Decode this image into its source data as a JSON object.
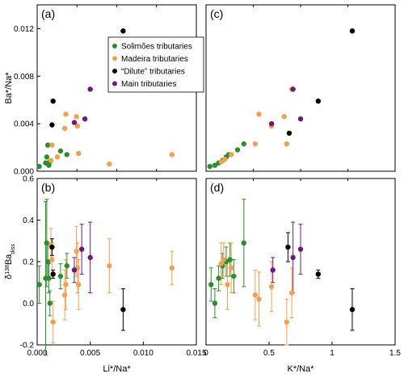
{
  "colors": {
    "Solimoes": "#2e8b2e",
    "Madeira": "#f0a050",
    "Dilute": "#000000",
    "Main": "#6a1b7a"
  },
  "chart_data": [
    {
      "panel": "(a)",
      "type": "scatter",
      "xlim": [
        0,
        0.015
      ],
      "ylim": [
        0,
        0.014
      ],
      "xticks": [],
      "yticks": [
        "0.000",
        "0.004",
        "0.008",
        "0.012"
      ],
      "ytick_values": [
        0,
        0.004,
        0.008,
        0.012
      ],
      "xlabel": "",
      "ylabel": "Ba*/Na*",
      "legend": {
        "placement": "top-right",
        "entries": [
          {
            "group": "Solimoes",
            "label": "Solimões tributaries"
          },
          {
            "group": "Madeira",
            "label": "Madeira tributaries"
          },
          {
            "group": "Dilute",
            "label": "“Dilute” tributaries"
          },
          {
            "group": "Main",
            "label": "Main tributaries"
          }
        ]
      },
      "points": [
        {
          "group": "Solimoes",
          "x": 0.0002,
          "y": 0.0004
        },
        {
          "group": "Solimoes",
          "x": 0.0008,
          "y": 0.0007
        },
        {
          "group": "Solimoes",
          "x": 0.0009,
          "y": 0.0012
        },
        {
          "group": "Solimoes",
          "x": 0.001,
          "y": 0.0022
        },
        {
          "group": "Solimoes",
          "x": 0.0011,
          "y": 0.0005
        },
        {
          "group": "Solimoes",
          "x": 0.0012,
          "y": 0.0008
        },
        {
          "group": "Solimoes",
          "x": 0.0022,
          "y": 0.0017
        },
        {
          "group": "Solimoes",
          "x": 0.0028,
          "y": 0.0014
        },
        {
          "group": "Madeira",
          "x": 0.0013,
          "y": 0.0009
        },
        {
          "group": "Madeira",
          "x": 0.0014,
          "y": 0.0022
        },
        {
          "group": "Madeira",
          "x": 0.0019,
          "y": 0.0012
        },
        {
          "group": "Madeira",
          "x": 0.0026,
          "y": 0.0036
        },
        {
          "group": "Madeira",
          "x": 0.0027,
          "y": 0.0048
        },
        {
          "group": "Madeira",
          "x": 0.0037,
          "y": 0.0046
        },
        {
          "group": "Madeira",
          "x": 0.0038,
          "y": 0.0038
        },
        {
          "group": "Madeira",
          "x": 0.0039,
          "y": 0.0015
        },
        {
          "group": "Madeira",
          "x": 0.0068,
          "y": 0.0006
        },
        {
          "group": "Madeira",
          "x": 0.0127,
          "y": 0.0014
        },
        {
          "group": "Dilute",
          "x": 0.0014,
          "y": 0.0039
        },
        {
          "group": "Dilute",
          "x": 0.0015,
          "y": 0.0059
        },
        {
          "group": "Dilute",
          "x": 0.0081,
          "y": 0.0118
        },
        {
          "group": "Main",
          "x": 0.0035,
          "y": 0.0041
        },
        {
          "group": "Main",
          "x": 0.0045,
          "y": 0.0044
        },
        {
          "group": "Main",
          "x": 0.005,
          "y": 0.0069
        }
      ]
    },
    {
      "panel": "(c)",
      "type": "scatter",
      "xlim": [
        0,
        1.5
      ],
      "ylim": [
        0,
        0.014
      ],
      "xticks": [],
      "yticks": [],
      "xlabel": "",
      "ylabel": "",
      "points": [
        {
          "group": "Solimoes",
          "x": 0.03,
          "y": 0.0004
        },
        {
          "group": "Solimoes",
          "x": 0.07,
          "y": 0.0005
        },
        {
          "group": "Solimoes",
          "x": 0.1,
          "y": 0.0007
        },
        {
          "group": "Solimoes",
          "x": 0.13,
          "y": 0.0009
        },
        {
          "group": "Solimoes",
          "x": 0.16,
          "y": 0.0012
        },
        {
          "group": "Solimoes",
          "x": 0.18,
          "y": 0.0014
        },
        {
          "group": "Solimoes",
          "x": 0.25,
          "y": 0.0018
        },
        {
          "group": "Solimoes",
          "x": 0.3,
          "y": 0.0023
        },
        {
          "group": "Madeira",
          "x": 0.12,
          "y": 0.0008
        },
        {
          "group": "Madeira",
          "x": 0.15,
          "y": 0.001
        },
        {
          "group": "Madeira",
          "x": 0.2,
          "y": 0.0014
        },
        {
          "group": "Madeira",
          "x": 0.39,
          "y": 0.0023
        },
        {
          "group": "Madeira",
          "x": 0.42,
          "y": 0.0048
        },
        {
          "group": "Madeira",
          "x": 0.52,
          "y": 0.0038
        },
        {
          "group": "Madeira",
          "x": 0.62,
          "y": 0.0046
        },
        {
          "group": "Madeira",
          "x": 0.64,
          "y": 0.0023
        },
        {
          "group": "Madeira",
          "x": 0.68,
          "y": 0.0069
        },
        {
          "group": "Dilute",
          "x": 0.66,
          "y": 0.0032
        },
        {
          "group": "Dilute",
          "x": 0.89,
          "y": 0.0059
        },
        {
          "group": "Dilute",
          "x": 1.16,
          "y": 0.0118
        },
        {
          "group": "Main",
          "x": 0.52,
          "y": 0.004
        },
        {
          "group": "Main",
          "x": 0.69,
          "y": 0.0069
        },
        {
          "group": "Main",
          "x": 0.75,
          "y": 0.0044
        }
      ]
    },
    {
      "panel": "(b)",
      "type": "scatter",
      "xlim": [
        0,
        0.015
      ],
      "ylim": [
        -0.2,
        0.6
      ],
      "xticks": [
        "0.000",
        "0.005",
        "0.010",
        "0.015"
      ],
      "xtick_values": [
        0,
        0.005,
        0.01,
        0.015
      ],
      "yticks": [
        "-0.2",
        "0.0",
        "0.2",
        "0.4",
        "0.6"
      ],
      "ytick_values": [
        -0.2,
        0,
        0.2,
        0.4,
        0.6
      ],
      "xlabel": "Li*/Na*",
      "ylabel": "δ138Badiss",
      "points": [
        {
          "group": "Solimoes",
          "x": 0.0002,
          "y": 0.09,
          "err": 0.09
        },
        {
          "group": "Solimoes",
          "x": 0.0008,
          "y": 0.12,
          "err": 0.37
        },
        {
          "group": "Solimoes",
          "x": 0.0009,
          "y": 0.29,
          "err": 0.21
        },
        {
          "group": "Solimoes",
          "x": 0.001,
          "y": 0.2,
          "err": 0.08
        },
        {
          "group": "Solimoes",
          "x": 0.0011,
          "y": 0.12,
          "err": 0.07
        },
        {
          "group": "Solimoes",
          "x": 0.0012,
          "y": 0.0,
          "err": 0.06
        },
        {
          "group": "Solimoes",
          "x": 0.0022,
          "y": 0.13,
          "err": 0.06
        },
        {
          "group": "Solimoes",
          "x": 0.0028,
          "y": 0.18,
          "err": 0.06
        },
        {
          "group": "Madeira",
          "x": 0.0013,
          "y": 0.28,
          "err": 0.08
        },
        {
          "group": "Madeira",
          "x": 0.0014,
          "y": 0.21,
          "err": 0.08
        },
        {
          "group": "Madeira",
          "x": 0.0015,
          "y": -0.09,
          "err": 0.1
        },
        {
          "group": "Madeira",
          "x": 0.0026,
          "y": 0.04,
          "err": 0.12
        },
        {
          "group": "Madeira",
          "x": 0.0027,
          "y": 0.09,
          "err": 0.12
        },
        {
          "group": "Madeira",
          "x": 0.0037,
          "y": 0.25,
          "err": 0.12
        },
        {
          "group": "Madeira",
          "x": 0.0038,
          "y": 0.17,
          "err": 0.12
        },
        {
          "group": "Madeira",
          "x": 0.0039,
          "y": 0.09,
          "err": 0.12
        },
        {
          "group": "Madeira",
          "x": 0.0068,
          "y": 0.18,
          "err": 0.13
        },
        {
          "group": "Madeira",
          "x": 0.0127,
          "y": 0.17,
          "err": 0.08
        },
        {
          "group": "Dilute",
          "x": 0.0014,
          "y": 0.27,
          "err": 0.04
        },
        {
          "group": "Dilute",
          "x": 0.0015,
          "y": 0.14,
          "err": 0.02
        },
        {
          "group": "Dilute",
          "x": 0.0081,
          "y": -0.03,
          "err": 0.1
        },
        {
          "group": "Main",
          "x": 0.0035,
          "y": 0.16,
          "err": 0.06
        },
        {
          "group": "Main",
          "x": 0.0042,
          "y": 0.26,
          "err": 0.12
        },
        {
          "group": "Main",
          "x": 0.005,
          "y": 0.22,
          "err": 0.17
        }
      ]
    },
    {
      "panel": "(d)",
      "type": "scatter",
      "xlim": [
        0,
        1.5
      ],
      "ylim": [
        -0.2,
        0.6
      ],
      "xticks": [
        "0",
        "0.5",
        "1",
        "1.5"
      ],
      "xtick_values": [
        0,
        0.5,
        1,
        1.5
      ],
      "yticks": [],
      "xlabel": "K*/Na*",
      "ylabel": "",
      "points": [
        {
          "group": "Solimoes",
          "x": 0.04,
          "y": 0.09,
          "err": 0.08
        },
        {
          "group": "Solimoes",
          "x": 0.07,
          "y": 0.0,
          "err": 0.07
        },
        {
          "group": "Solimoes",
          "x": 0.1,
          "y": 0.12,
          "err": 0.06
        },
        {
          "group": "Solimoes",
          "x": 0.13,
          "y": 0.18,
          "err": 0.06
        },
        {
          "group": "Solimoes",
          "x": 0.16,
          "y": 0.2,
          "err": 0.07
        },
        {
          "group": "Solimoes",
          "x": 0.19,
          "y": 0.21,
          "err": 0.08
        },
        {
          "group": "Solimoes",
          "x": 0.22,
          "y": 0.13,
          "err": 0.08
        },
        {
          "group": "Solimoes",
          "x": 0.3,
          "y": 0.29,
          "err": 0.21
        },
        {
          "group": "Madeira",
          "x": 0.12,
          "y": 0.19,
          "err": 0.1
        },
        {
          "group": "Madeira",
          "x": 0.14,
          "y": 0.21,
          "err": 0.08
        },
        {
          "group": "Madeira",
          "x": 0.17,
          "y": 0.09,
          "err": 0.12
        },
        {
          "group": "Madeira",
          "x": 0.2,
          "y": 0.17,
          "err": 0.12
        },
        {
          "group": "Madeira",
          "x": 0.39,
          "y": 0.04,
          "err": 0.12
        },
        {
          "group": "Madeira",
          "x": 0.42,
          "y": 0.02,
          "err": 0.13
        },
        {
          "group": "Madeira",
          "x": 0.52,
          "y": 0.08,
          "err": 0.12
        },
        {
          "group": "Madeira",
          "x": 0.64,
          "y": -0.09,
          "err": 0.11
        },
        {
          "group": "Madeira",
          "x": 0.68,
          "y": 0.05,
          "err": 0.12
        },
        {
          "group": "Dilute",
          "x": 0.65,
          "y": 0.27,
          "err": 0.07
        },
        {
          "group": "Dilute",
          "x": 0.89,
          "y": 0.14,
          "err": 0.02
        },
        {
          "group": "Dilute",
          "x": 1.16,
          "y": -0.03,
          "err": 0.1
        },
        {
          "group": "Main",
          "x": 0.53,
          "y": 0.16,
          "err": 0.06
        },
        {
          "group": "Main",
          "x": 0.69,
          "y": 0.22,
          "err": 0.17
        },
        {
          "group": "Main",
          "x": 0.75,
          "y": 0.26,
          "err": 0.12
        }
      ]
    }
  ]
}
